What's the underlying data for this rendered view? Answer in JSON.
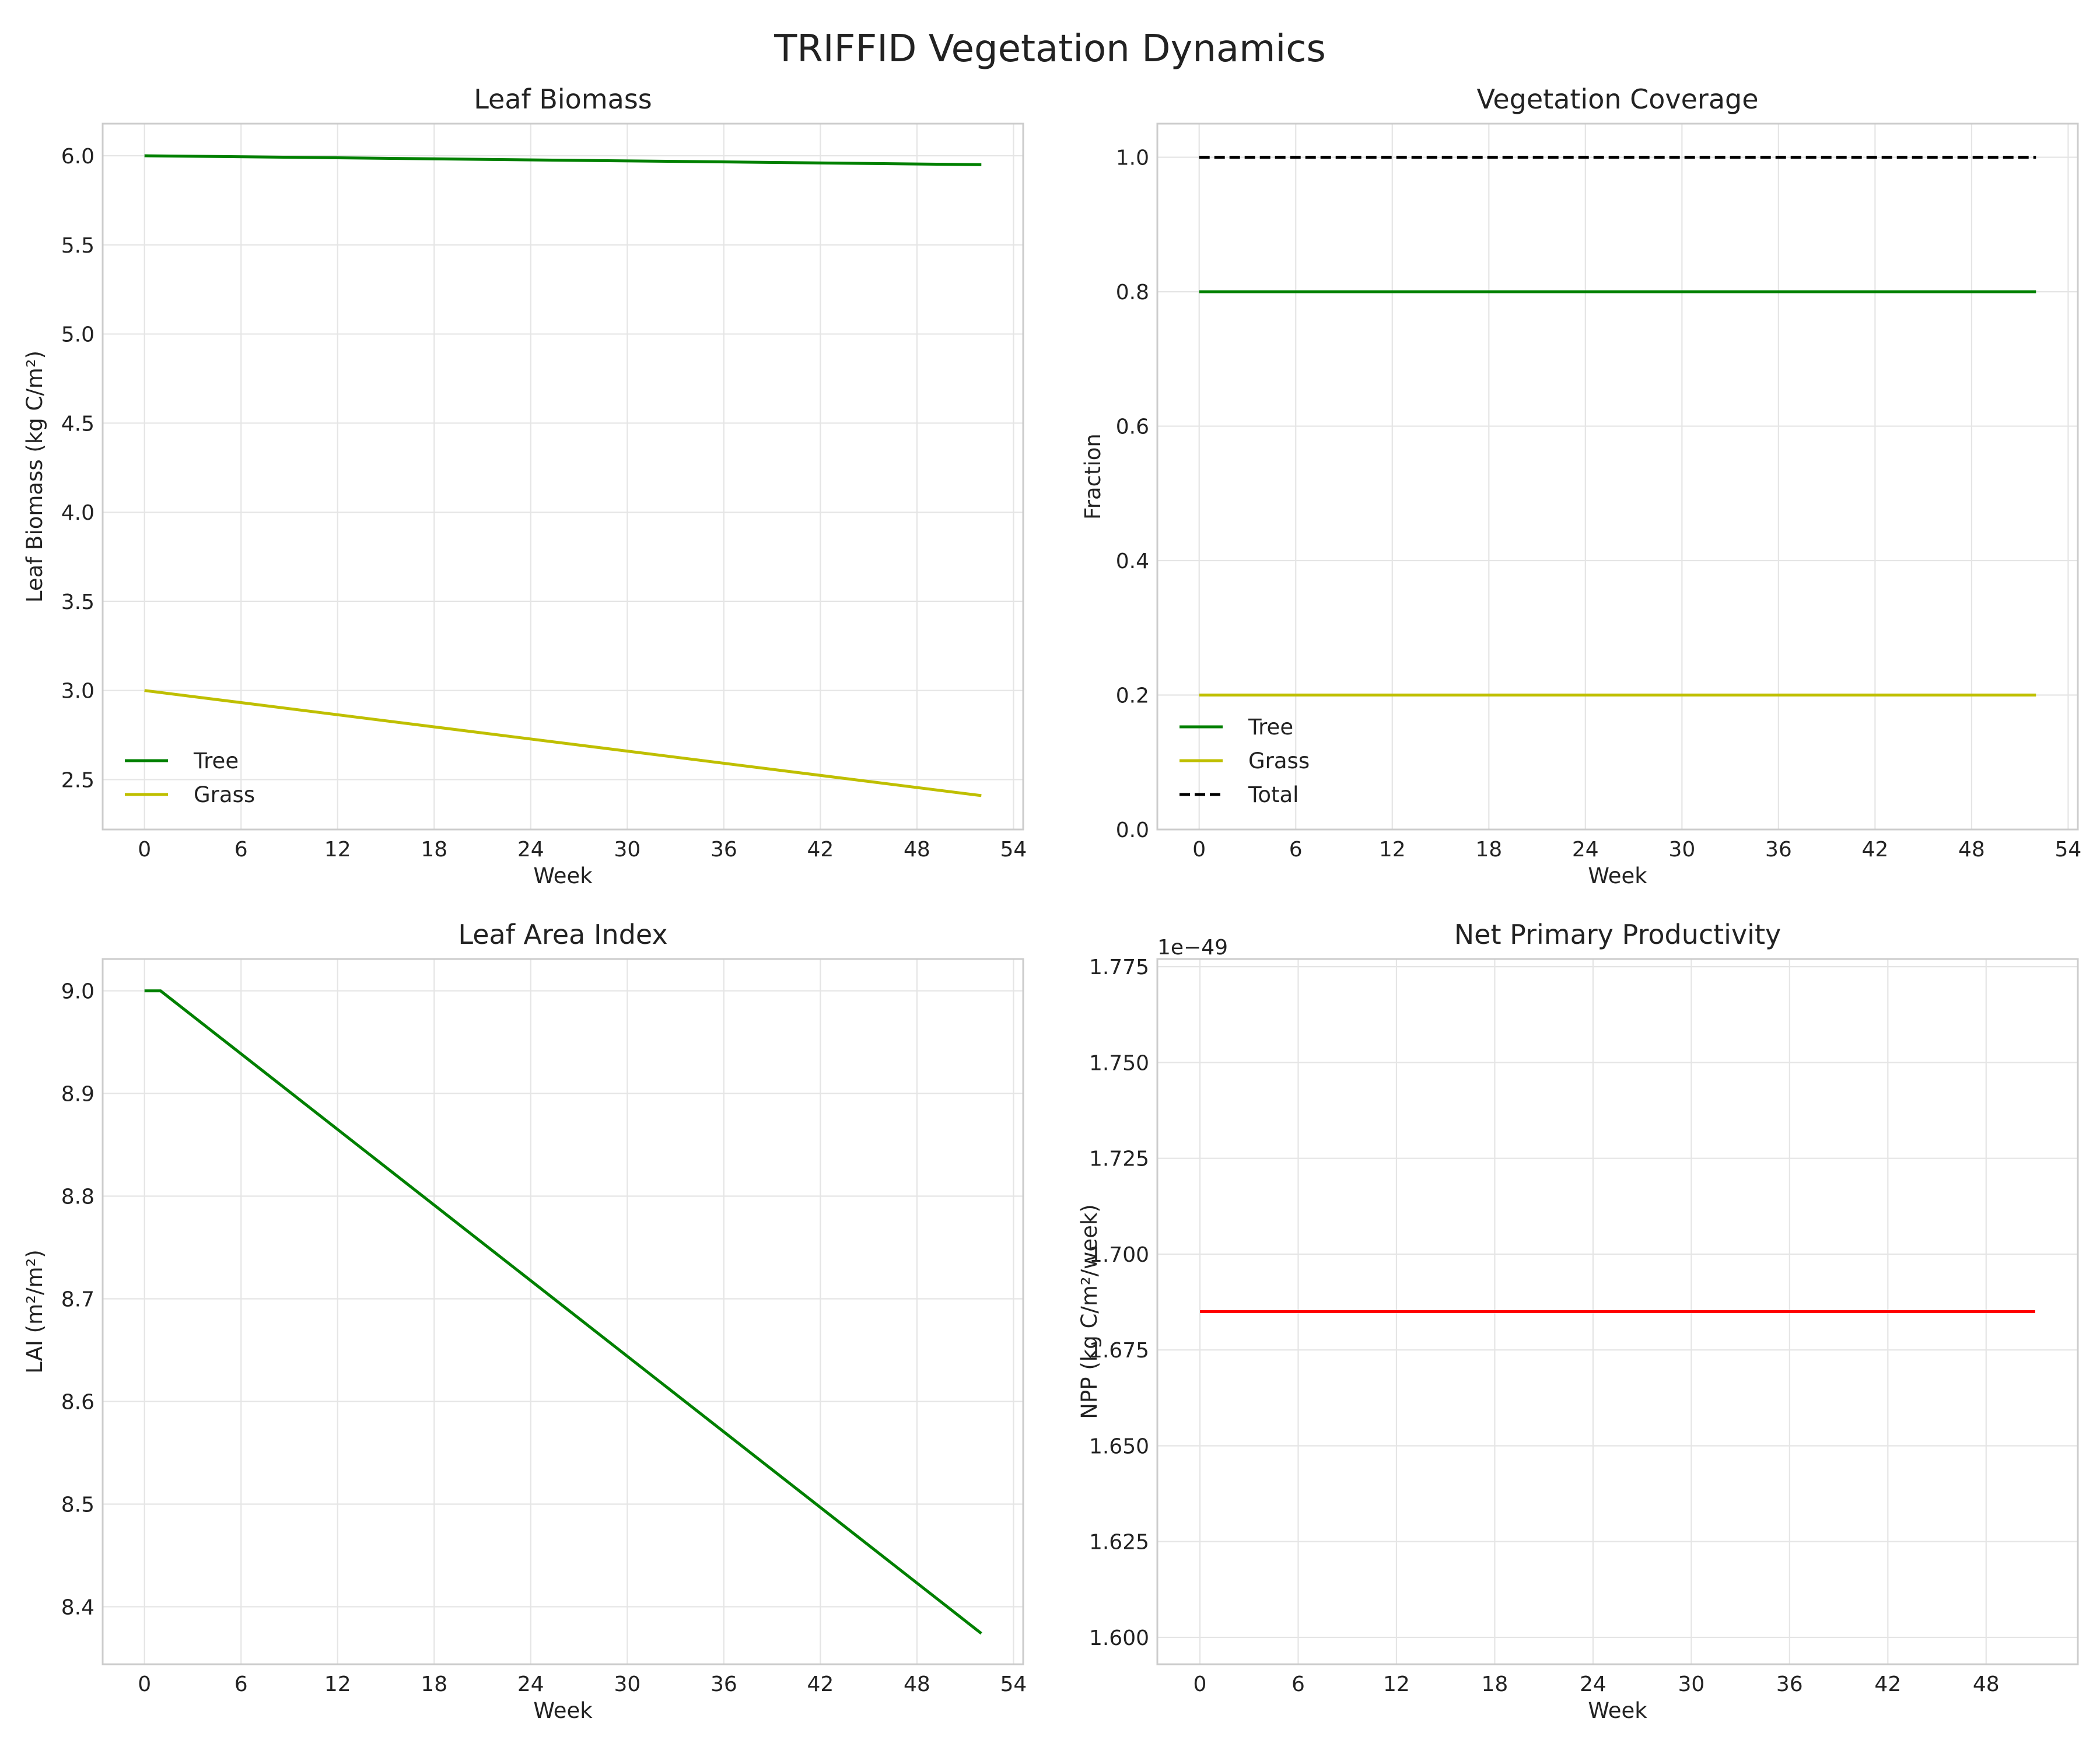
{
  "figure": {
    "title": "TRIFFID Vegetation Dynamics"
  },
  "colors": {
    "tree": "#008000",
    "grass": "#bfbf00",
    "total": "#000000",
    "npp": "#ff0000"
  },
  "chart_data": [
    {
      "id": "leaf-biomass",
      "type": "line",
      "title": "Leaf Biomass",
      "xlabel": "Week",
      "ylabel": "Leaf Biomass (kg C/m²)",
      "xlim": [
        -2.6,
        54.6
      ],
      "ylim": [
        2.22,
        6.18
      ],
      "xticks": [
        0,
        6,
        12,
        18,
        24,
        30,
        36,
        42,
        48,
        54
      ],
      "yticks": [
        2.5,
        3.0,
        3.5,
        4.0,
        4.5,
        5.0,
        5.5,
        6.0
      ],
      "ytick_labels": [
        "2.5",
        "3.0",
        "3.5",
        "4.0",
        "4.5",
        "5.0",
        "5.5",
        "6.0"
      ],
      "grid": true,
      "legend": "lower-left",
      "series": [
        {
          "name": "Tree",
          "color": "#008000",
          "style": "solid",
          "x": [
            0,
            52
          ],
          "y": [
            6.0,
            5.95
          ]
        },
        {
          "name": "Grass",
          "color": "#bfbf00",
          "style": "solid",
          "x": [
            0,
            52
          ],
          "y": [
            3.0,
            2.41
          ]
        }
      ]
    },
    {
      "id": "vegetation-coverage",
      "type": "line",
      "title": "Vegetation Coverage",
      "xlabel": "Week",
      "ylabel": "Fraction",
      "xlim": [
        -2.6,
        54.6
      ],
      "ylim": [
        0.0,
        1.05
      ],
      "xticks": [
        0,
        6,
        12,
        18,
        24,
        30,
        36,
        42,
        48,
        54
      ],
      "yticks": [
        0.0,
        0.2,
        0.4,
        0.6,
        0.8,
        1.0
      ],
      "ytick_labels": [
        "0.0",
        "0.2",
        "0.4",
        "0.6",
        "0.8",
        "1.0"
      ],
      "grid": true,
      "legend": "lower-left",
      "series": [
        {
          "name": "Tree",
          "color": "#008000",
          "style": "solid",
          "x": [
            0,
            52
          ],
          "y": [
            0.8,
            0.8
          ]
        },
        {
          "name": "Grass",
          "color": "#bfbf00",
          "style": "solid",
          "x": [
            0,
            52
          ],
          "y": [
            0.2,
            0.2
          ]
        },
        {
          "name": "Total",
          "color": "#000000",
          "style": "dashed",
          "x": [
            0,
            52
          ],
          "y": [
            1.0,
            1.0
          ]
        }
      ]
    },
    {
      "id": "leaf-area-index",
      "type": "line",
      "title": "Leaf Area Index",
      "xlabel": "Week",
      "ylabel": "LAI (m²/m²)",
      "xlim": [
        -2.6,
        54.6
      ],
      "ylim": [
        8.344,
        9.031
      ],
      "xticks": [
        0,
        6,
        12,
        18,
        24,
        30,
        36,
        42,
        48,
        54
      ],
      "yticks": [
        8.4,
        8.5,
        8.6,
        8.7,
        8.8,
        8.9,
        9.0
      ],
      "ytick_labels": [
        "8.4",
        "8.5",
        "8.6",
        "8.7",
        "8.8",
        "8.9",
        "9.0"
      ],
      "grid": true,
      "legend": "none",
      "series": [
        {
          "name": "",
          "color": "#008000",
          "style": "solid",
          "x": [
            0,
            1,
            52
          ],
          "y": [
            9.0,
            9.0,
            8.374
          ]
        }
      ]
    },
    {
      "id": "net-primary-productivity",
      "type": "line",
      "title": "Net Primary Productivity",
      "xlabel": "Week",
      "ylabel": "NPP (kg C/m²/week)",
      "offset_text": "1e−49",
      "xlim": [
        -2.6,
        53.6
      ],
      "ylim": [
        1.593,
        1.777
      ],
      "xticks": [
        0,
        6,
        12,
        18,
        24,
        30,
        36,
        42,
        48
      ],
      "yticks": [
        1.6,
        1.625,
        1.65,
        1.675,
        1.7,
        1.725,
        1.75,
        1.775
      ],
      "ytick_labels": [
        "1.600",
        "1.625",
        "1.650",
        "1.675",
        "1.700",
        "1.725",
        "1.750",
        "1.775"
      ],
      "grid": true,
      "legend": "none",
      "series": [
        {
          "name": "",
          "color": "#ff0000",
          "style": "solid",
          "x": [
            0,
            51
          ],
          "y": [
            1.685,
            1.685
          ]
        }
      ]
    }
  ]
}
